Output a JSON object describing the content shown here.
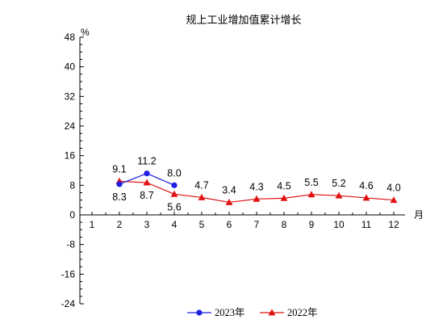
{
  "chart_data": {
    "type": "line",
    "title": "规上工业增加值累计增长",
    "ylabel": "%",
    "xlabel": "月",
    "ylim": [
      -24,
      48
    ],
    "yticks": [
      -24,
      -16,
      -8,
      0,
      8,
      16,
      24,
      32,
      40,
      48
    ],
    "categories": [
      1,
      2,
      3,
      4,
      5,
      6,
      7,
      8,
      9,
      10,
      11,
      12
    ],
    "grid": false,
    "legend_position": "bottom",
    "series": [
      {
        "name": "2023年",
        "color": "#1f1fe0",
        "marker": "circle",
        "x": [
          2,
          3,
          4
        ],
        "values": [
          8.3,
          11.2,
          8.0
        ],
        "labels": [
          "8.3",
          "11.2",
          "8.0"
        ]
      },
      {
        "name": "2022年",
        "color": "#e01010",
        "marker": "triangle",
        "x": [
          2,
          3,
          4,
          5,
          6,
          7,
          8,
          9,
          10,
          11,
          12
        ],
        "values": [
          9.1,
          8.7,
          5.6,
          4.7,
          3.4,
          4.3,
          4.5,
          5.5,
          5.2,
          4.6,
          4.0
        ],
        "labels": [
          "9.1",
          "8.7",
          "5.6",
          "4.7",
          "3.4",
          "4.3",
          "4.5",
          "5.5",
          "5.2",
          "4.6",
          "4.0"
        ]
      }
    ]
  }
}
